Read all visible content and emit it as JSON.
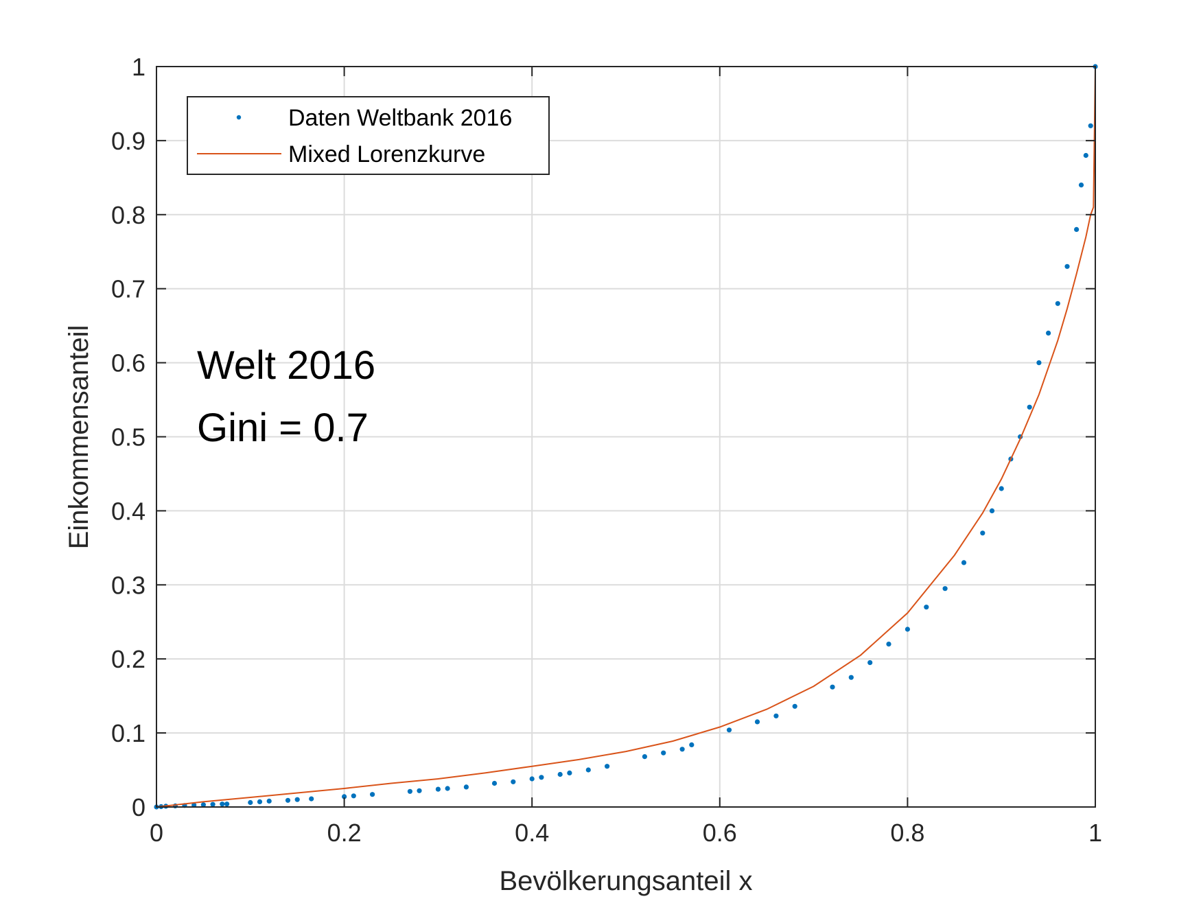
{
  "chart_data": {
    "type": "scatter",
    "title": "",
    "xlabel": "Bevölkerungsanteil x",
    "ylabel": "Einkommensanteil",
    "xlim": [
      0,
      1
    ],
    "ylim": [
      0,
      1
    ],
    "x_ticks": [
      "0",
      "0.2",
      "0.4",
      "0.6",
      "0.8",
      "1"
    ],
    "y_ticks": [
      "0",
      "0.1",
      "0.2",
      "0.3",
      "0.4",
      "0.5",
      "0.6",
      "0.7",
      "0.8",
      "0.9",
      "1"
    ],
    "grid": true,
    "legend_position": "top-left",
    "annotations": [
      "Welt 2016",
      "Gini = 0.7"
    ],
    "series": [
      {
        "name": "Daten Weltbank 2016",
        "kind": "points",
        "color": "#0072BD",
        "x": [
          0.0,
          0.005,
          0.01,
          0.02,
          0.03,
          0.04,
          0.05,
          0.06,
          0.07,
          0.075,
          0.1,
          0.11,
          0.12,
          0.14,
          0.15,
          0.165,
          0.2,
          0.21,
          0.23,
          0.27,
          0.28,
          0.3,
          0.31,
          0.33,
          0.36,
          0.38,
          0.4,
          0.41,
          0.43,
          0.44,
          0.46,
          0.48,
          0.52,
          0.54,
          0.56,
          0.57,
          0.61,
          0.64,
          0.66,
          0.68,
          0.72,
          0.74,
          0.76,
          0.78,
          0.8,
          0.82,
          0.84,
          0.86,
          0.88,
          0.89,
          0.9,
          0.91,
          0.92,
          0.93,
          0.94,
          0.95,
          0.96,
          0.97,
          0.98,
          0.985,
          0.99,
          0.995,
          1.0
        ],
        "y": [
          0.0,
          0.0005,
          0.001,
          0.0015,
          0.002,
          0.0025,
          0.003,
          0.0035,
          0.004,
          0.004,
          0.006,
          0.007,
          0.008,
          0.009,
          0.01,
          0.011,
          0.014,
          0.015,
          0.017,
          0.021,
          0.022,
          0.024,
          0.025,
          0.027,
          0.032,
          0.034,
          0.038,
          0.04,
          0.044,
          0.046,
          0.05,
          0.055,
          0.068,
          0.073,
          0.078,
          0.084,
          0.104,
          0.115,
          0.123,
          0.136,
          0.162,
          0.175,
          0.195,
          0.22,
          0.24,
          0.27,
          0.295,
          0.33,
          0.37,
          0.4,
          0.43,
          0.47,
          0.5,
          0.54,
          0.6,
          0.64,
          0.68,
          0.73,
          0.78,
          0.84,
          0.88,
          0.92,
          1.0
        ]
      },
      {
        "name": "Mixed Lorenzkurve",
        "kind": "line",
        "color": "#D95319",
        "x": [
          0.0,
          0.05,
          0.1,
          0.15,
          0.2,
          0.25,
          0.3,
          0.35,
          0.4,
          0.45,
          0.5,
          0.55,
          0.6,
          0.65,
          0.7,
          0.75,
          0.8,
          0.85,
          0.88,
          0.9,
          0.92,
          0.94,
          0.96,
          0.97,
          0.98,
          0.99,
          0.995,
          0.998,
          1.0
        ],
        "y": [
          0.0,
          0.007,
          0.013,
          0.019,
          0.025,
          0.032,
          0.038,
          0.046,
          0.055,
          0.064,
          0.075,
          0.089,
          0.108,
          0.132,
          0.163,
          0.205,
          0.262,
          0.34,
          0.397,
          0.443,
          0.497,
          0.557,
          0.63,
          0.673,
          0.72,
          0.77,
          0.8,
          0.81,
          1.0
        ]
      }
    ]
  }
}
